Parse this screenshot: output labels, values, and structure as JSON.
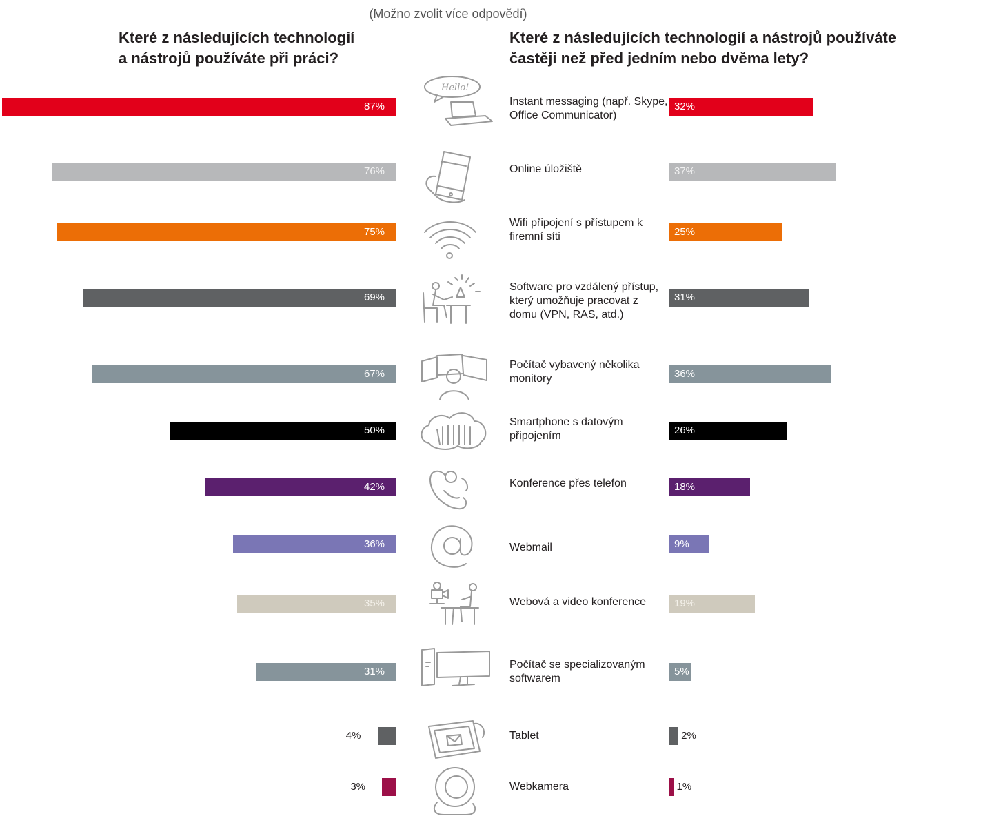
{
  "note": "(Možno zvolit více odpovědí)",
  "left_question": [
    "Které z následujících technologií",
    "a nástrojů používáte při práci?"
  ],
  "right_question": [
    "Které z následujících technologií a nástrojů používáte",
    "častěji než před jedním nebo dvěma lety?"
  ],
  "chart_data": {
    "type": "bar",
    "categories": [
      "Instant messaging (např. Skype, Office Communicator)",
      "Online úložiště",
      "Wifi připojení s přístupem k firemní síti",
      "Software pro vzdálený přístup, který umožňuje pracovat z domu (VPN, RAS, atd.)",
      "Počítač vybavený několika monitory",
      "Smartphone s datovým připojením",
      "Konference přes telefon",
      "Webmail",
      "Webová a video konference",
      "Počítač se specializovaným softwarem",
      "Tablet",
      "Webkamera"
    ],
    "series": [
      {
        "values": [
          87,
          76,
          75,
          69,
          67,
          50,
          42,
          36,
          35,
          31,
          4,
          3
        ]
      },
      {
        "values": [
          32,
          37,
          25,
          31,
          36,
          26,
          18,
          9,
          19,
          5,
          2,
          1
        ]
      }
    ],
    "colors": [
      "#e2001a",
      "#b7b8ba",
      "#ec6e06",
      "#5f6163",
      "#86949b",
      "#000000",
      "#5b206e",
      "#7a76b5",
      "#cfcabd",
      "#86949b",
      "#5f6163",
      "#9c1048"
    ],
    "labels": {
      "left": [
        "87%",
        "76%",
        "75%",
        "69%",
        "67%",
        "50%",
        "42%",
        "36%",
        "35%",
        "31%",
        "4%",
        "3%"
      ],
      "right": [
        "32%",
        "37%",
        "25%",
        "31%",
        "36%",
        "26%",
        "18%",
        "9%",
        "19%",
        "5%",
        "2%",
        "1%"
      ]
    },
    "icons": [
      "laptop-chat-icon",
      "smartphone-hand-icon",
      "wifi-icon",
      "remote-work-icon",
      "multi-monitor-icon",
      "cloud-storage-icon",
      "phone-conference-icon",
      "at-sign-icon",
      "video-conference-icon",
      "workstation-icon",
      "tablet-icon",
      "webcam-icon"
    ]
  }
}
